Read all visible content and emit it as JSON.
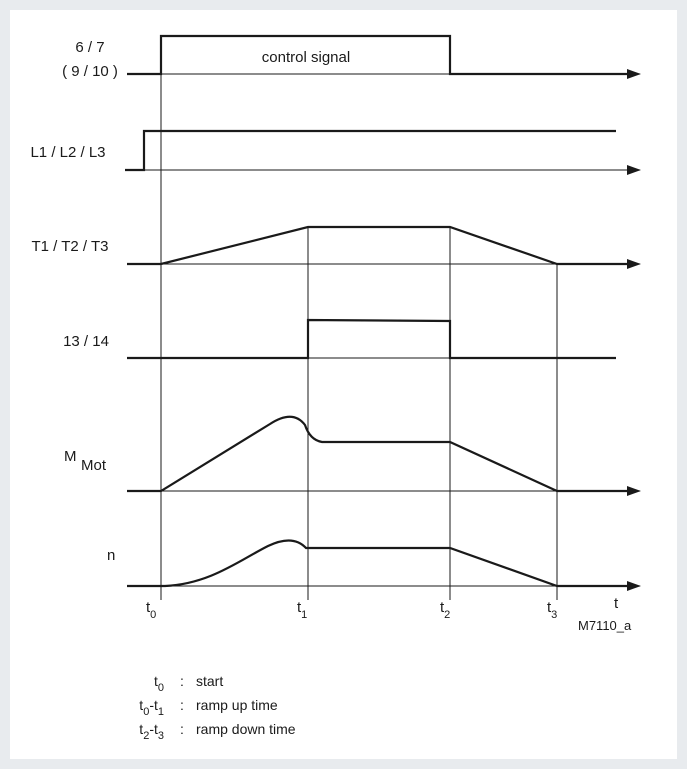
{
  "signals": {
    "row1_line1": "6 / 7",
    "row1_line2": "( 9 / 10 )",
    "row2": "L1 / L2 / L3",
    "row3": "T1 / T2 / T3",
    "row4": "13 / 14",
    "row5_main": "M",
    "row5_sub": "Mot",
    "row6": "n"
  },
  "control_signal_label": "control signal",
  "time_axis": {
    "axis_label": "t",
    "ticks": [
      {
        "base": "t",
        "sub": "0"
      },
      {
        "base": "t",
        "sub": "1"
      },
      {
        "base": "t",
        "sub": "2"
      },
      {
        "base": "t",
        "sub": "3"
      }
    ]
  },
  "figure_code": "M7110_a",
  "legend": [
    {
      "term_base": "t",
      "term_sub": "0",
      "term_suffix": "",
      "term_sub2": "",
      "sep": ":",
      "desc": "start"
    },
    {
      "term_base": "t",
      "term_sub": "0",
      "term_suffix": "-t",
      "term_sub2": "1",
      "sep": ":",
      "desc": "ramp up time"
    },
    {
      "term_base": "t",
      "term_sub": "2",
      "term_suffix": "-t",
      "term_sub2": "3",
      "sep": ":",
      "desc": "ramp down time"
    }
  ],
  "colors": {
    "background": "#e8ebee",
    "panel": "#ffffff",
    "ink": "#1a1a1a"
  }
}
